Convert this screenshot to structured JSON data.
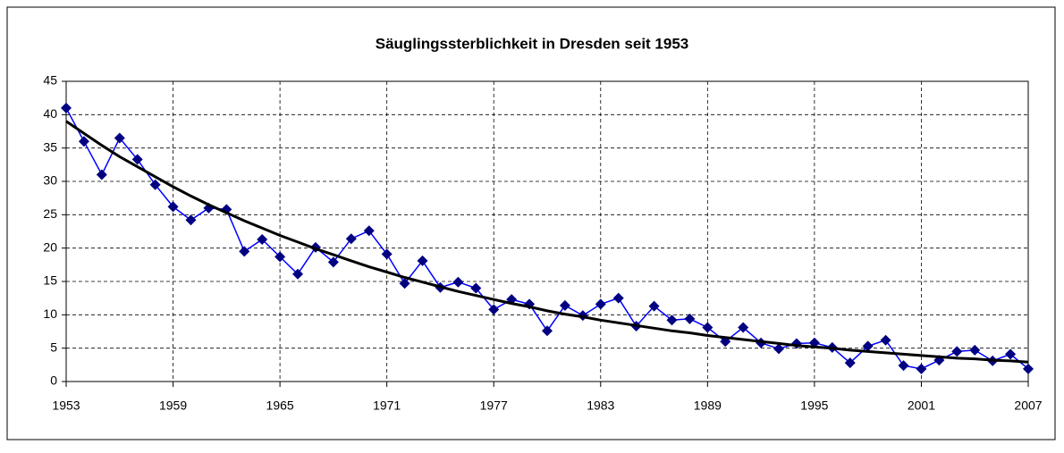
{
  "chart_data": {
    "type": "line",
    "title": "Säuglingssterblichkeit in Dresden seit 1953",
    "x": [
      1953,
      1954,
      1955,
      1956,
      1957,
      1958,
      1959,
      1960,
      1961,
      1962,
      1963,
      1964,
      1965,
      1966,
      1967,
      1968,
      1969,
      1970,
      1971,
      1972,
      1973,
      1974,
      1975,
      1976,
      1977,
      1978,
      1979,
      1980,
      1981,
      1982,
      1983,
      1984,
      1985,
      1986,
      1987,
      1988,
      1989,
      1990,
      1991,
      1992,
      1993,
      1994,
      1995,
      1996,
      1997,
      1998,
      1999,
      2000,
      2001,
      2002,
      2003,
      2004,
      2005,
      2006,
      2007
    ],
    "series": [
      {
        "color": "#0000ff",
        "marker_color": "#000080",
        "marker": "diamond",
        "values": [
          41,
          36,
          31,
          36.5,
          33.3,
          29.5,
          26.2,
          24.2,
          26,
          25.8,
          19.5,
          21.3,
          18.7,
          16.1,
          20.1,
          17.9,
          21.4,
          22.6,
          19.1,
          14.7,
          18.1,
          14.1,
          14.9,
          14,
          10.8,
          12.3,
          11.6,
          7.6,
          11.4,
          9.9,
          11.6,
          12.5,
          8.3,
          11.3,
          9.2,
          9.4,
          8.1,
          6,
          8.1,
          5.8,
          4.9,
          5.7,
          5.8,
          5.1,
          2.8,
          5.3,
          6.2,
          2.4,
          1.9,
          3.2,
          4.5,
          4.7,
          3.1,
          4.1,
          1.9
        ]
      },
      {
        "color": "#000000",
        "marker": "none",
        "line_width": 3,
        "values": [
          39.0,
          37.2,
          35.4,
          33.7,
          32.2,
          30.7,
          29.2,
          27.8,
          26.5,
          25.3,
          24.1,
          23.0,
          21.9,
          20.9,
          19.9,
          19.0,
          18.1,
          17.2,
          16.4,
          15.6,
          14.9,
          14.2,
          13.5,
          12.9,
          12.3,
          11.7,
          11.2,
          10.6,
          10.1,
          9.7,
          9.2,
          8.8,
          8.4,
          8.0,
          7.6,
          7.3,
          6.9,
          6.6,
          6.3,
          6.0,
          5.7,
          5.4,
          5.2,
          5.0,
          4.7,
          4.5,
          4.3,
          4.1,
          3.9,
          3.7,
          3.5,
          3.4,
          3.2,
          3.1,
          2.9
        ]
      }
    ],
    "xlim": [
      1953,
      2007
    ],
    "xticks": [
      1953,
      1959,
      1965,
      1971,
      1977,
      1983,
      1989,
      1995,
      2001,
      2007
    ],
    "ylim": [
      0,
      45
    ],
    "yticks": [
      0,
      5,
      10,
      15,
      20,
      25,
      30,
      35,
      40,
      45
    ],
    "grid": true
  }
}
